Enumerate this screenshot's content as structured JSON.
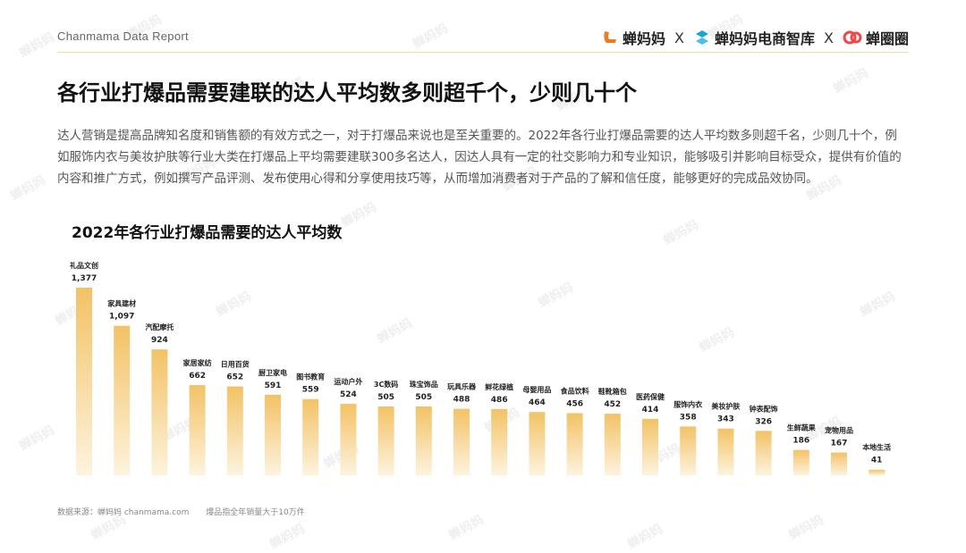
{
  "header": {
    "brand_text": "Chanmama Data Report",
    "logos": [
      {
        "name": "蝉妈妈",
        "color": "#f07a22"
      },
      {
        "name": "蝉妈妈电商智库",
        "color": "#1aa4d8"
      },
      {
        "name": "蝉圈圈",
        "color": "#f04848"
      }
    ],
    "separator": "X"
  },
  "title": "各行业打爆品需要建联的达人平均数多则超千个，少则几十个",
  "description": "达人营销是提高品牌知名度和销售额的有效方式之一，对于打爆品来说也是至关重要的。2022年各行业打爆品需要的达人平均数多则超千名，少则几十个，例如服饰内衣与美妆护肤等行业大类在打爆品上平均需要建联300多名达人，因达人具有一定的社交影响力和专业知识，能够吸引并影响目标受众，提供有价值的内容和推广方式，例如撰写产品评测、发布使用心得和分享使用技巧等，从而增加消费者对于产品的了解和信任度，能够更好的完成品效协同。",
  "chart_data": {
    "type": "bar",
    "title": "2022年各行业打爆品需要的达人平均数",
    "categories": [
      "礼品文创",
      "家具建材",
      "汽配摩托",
      "家居家纺",
      "日用百货",
      "厨卫家电",
      "图书教育",
      "运动户外",
      "3C数码",
      "珠宝饰品",
      "玩具乐器",
      "鲜花绿植",
      "母婴用品",
      "食品饮料",
      "鞋靴箱包",
      "医药保健",
      "服饰内衣",
      "美妆护肤",
      "钟表配饰",
      "生鲜蔬果",
      "宠物用品",
      "本地生活"
    ],
    "values": [
      1377,
      1097,
      924,
      662,
      652,
      591,
      559,
      524,
      505,
      505,
      488,
      486,
      464,
      456,
      452,
      414,
      358,
      343,
      326,
      186,
      167,
      41
    ],
    "value_labels": [
      "1,377",
      "1,097",
      "924",
      "662",
      "652",
      "591",
      "559",
      "524",
      "505",
      "505",
      "488",
      "486",
      "464",
      "456",
      "452",
      "414",
      "358",
      "343",
      "326",
      "186",
      "167",
      "41"
    ],
    "grid": false,
    "legend": "none",
    "bar_color_top": "#f3c265",
    "bar_color_bottom": "#fdf3de"
  },
  "footer": {
    "source": "数据来源：蝉妈妈 chanmama.com",
    "note": "爆品指全年销量大于10万件"
  },
  "watermark": "蝉妈妈"
}
